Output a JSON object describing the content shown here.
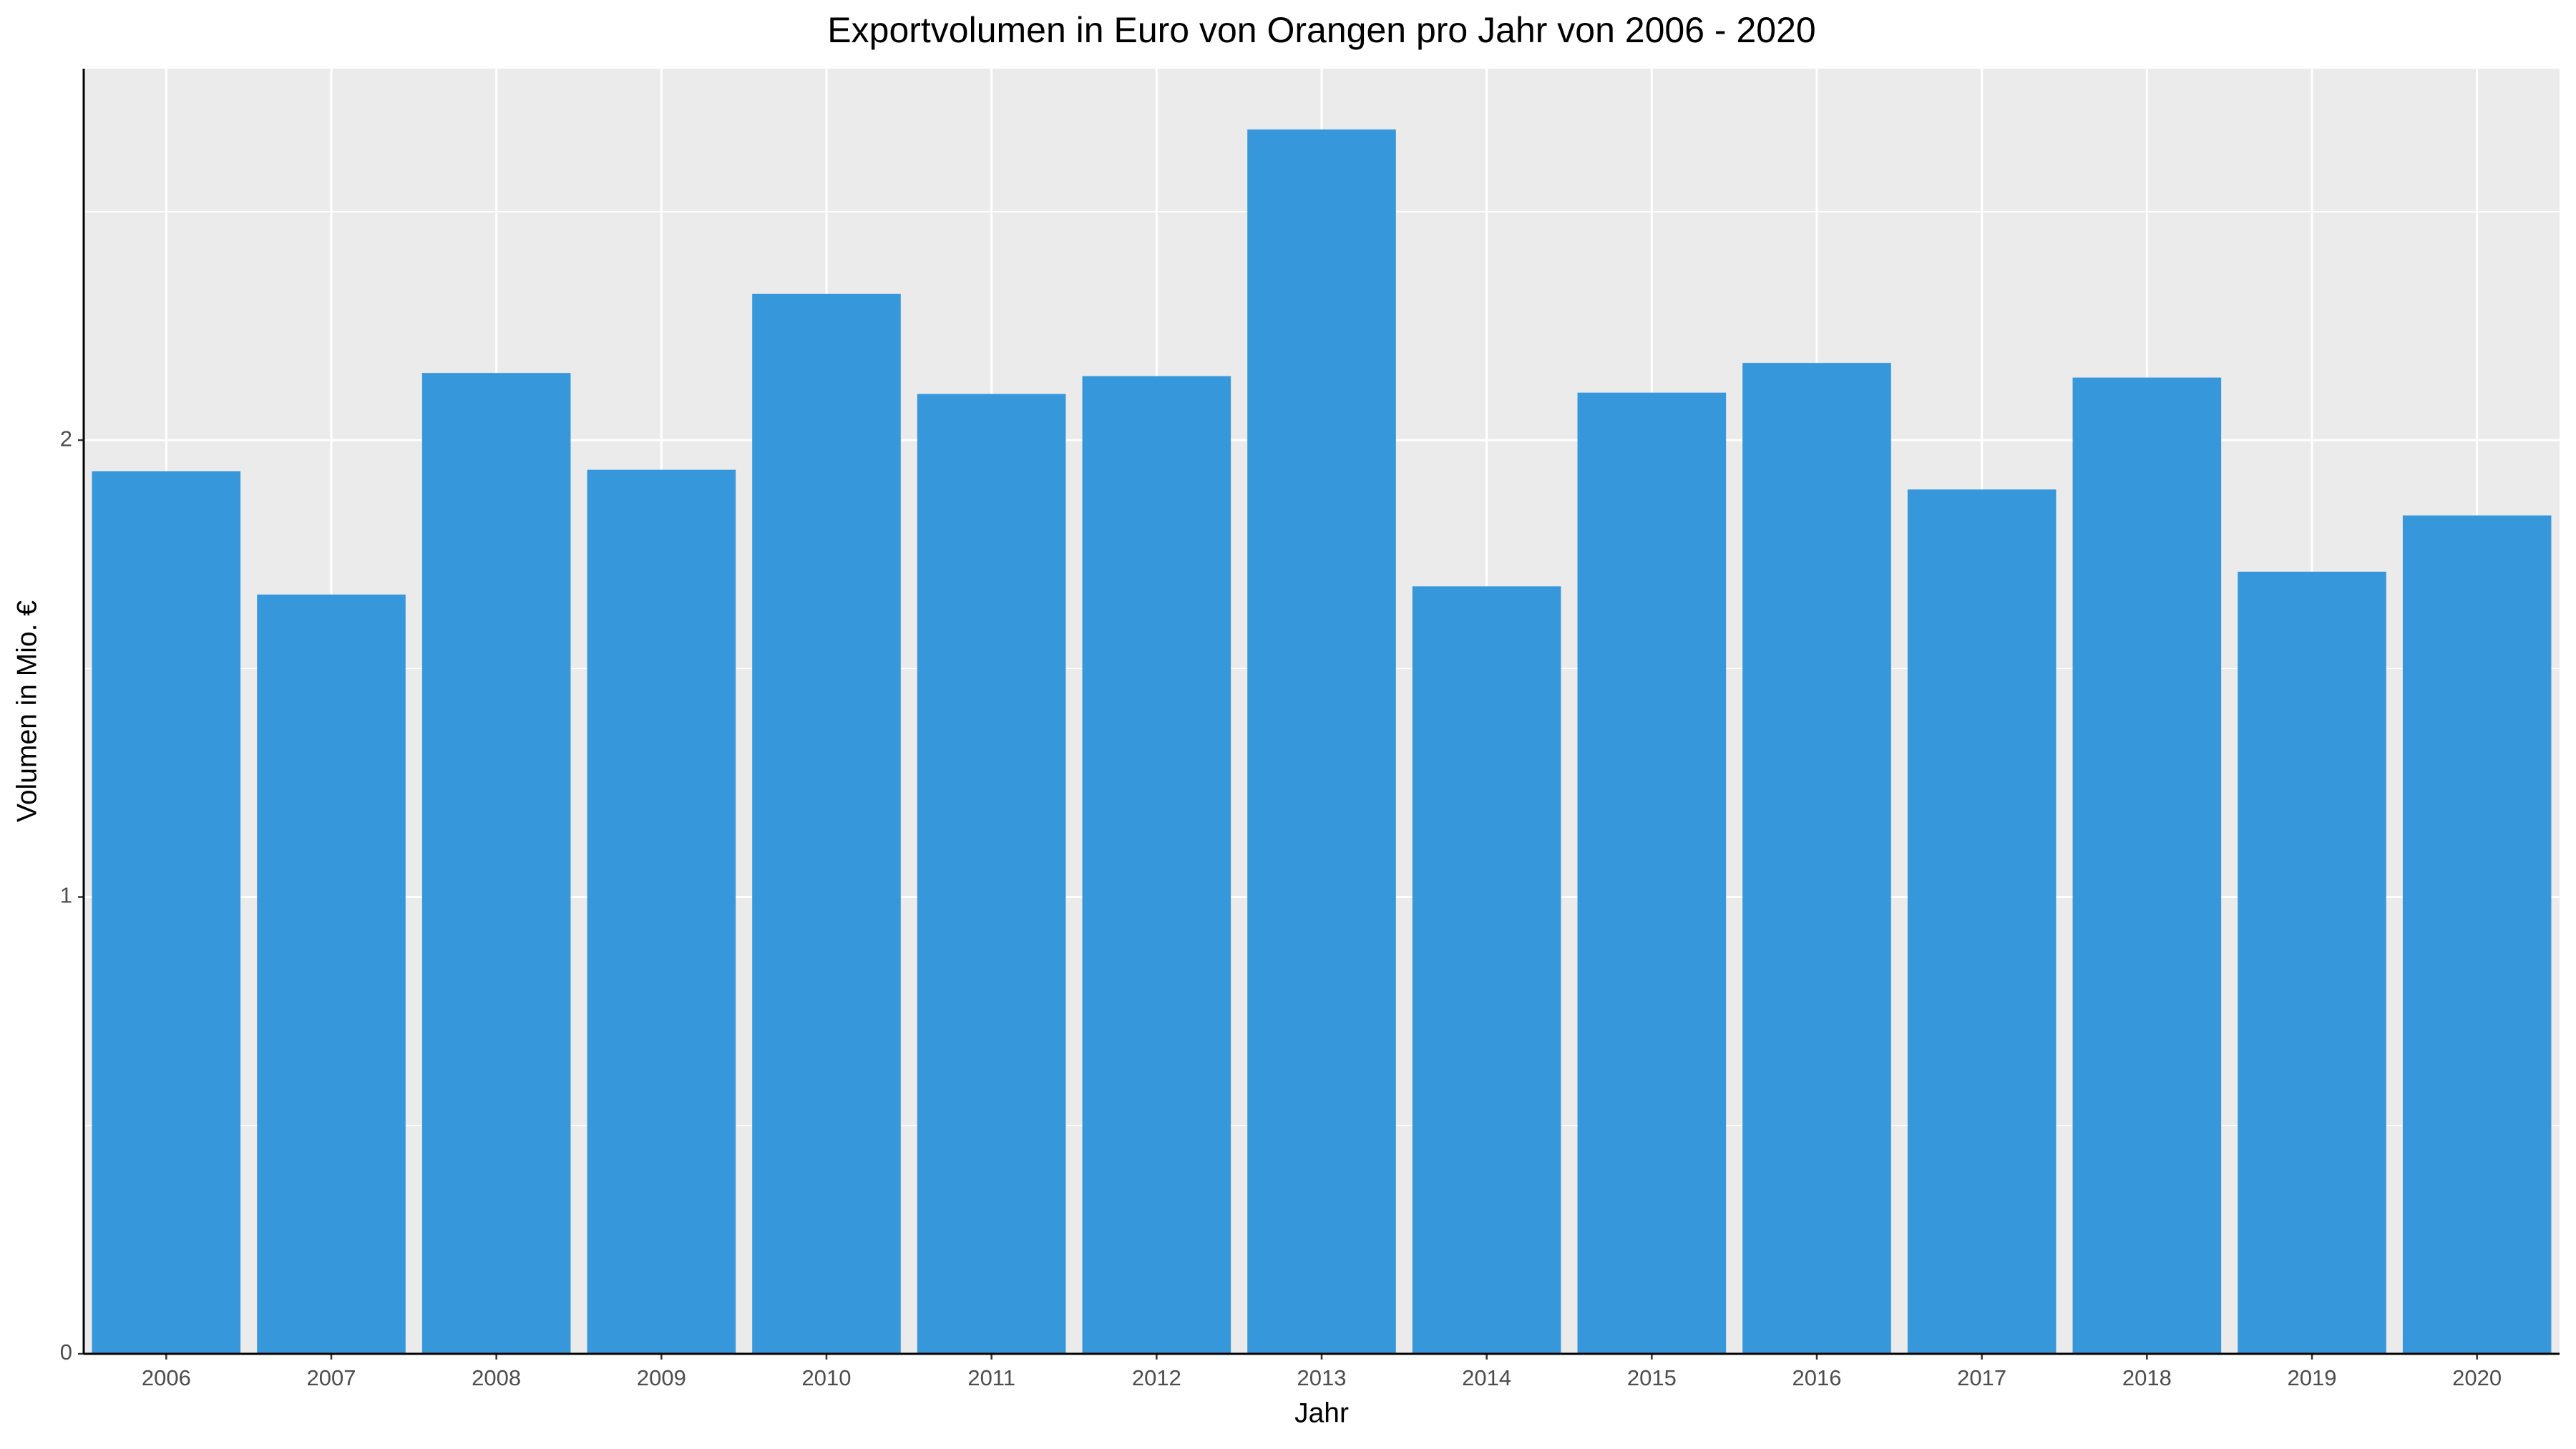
{
  "chart_data": {
    "type": "bar",
    "title": "Exportvolumen in Euro von Orangen pro Jahr von 2006 - 2020",
    "x_label": "Jahr",
    "y_label": "Volumen in Mio. €",
    "categories": [
      "2006",
      "2007",
      "2008",
      "2009",
      "2010",
      "2011",
      "2012",
      "2013",
      "2014",
      "2015",
      "2016",
      "2017",
      "2018",
      "2019",
      "2020"
    ],
    "values": [
      1.932,
      1.662,
      2.147,
      1.935,
      2.32,
      2.101,
      2.14,
      2.68,
      1.68,
      2.104,
      2.169,
      1.892,
      2.137,
      1.712,
      1.835
    ],
    "color": "#3797db",
    "ylim": [
      0,
      2.813
    ],
    "yticks": [
      0,
      1,
      2
    ],
    "minor_yticks": [
      0.5,
      1.5,
      2.5
    ],
    "grid": true
  }
}
